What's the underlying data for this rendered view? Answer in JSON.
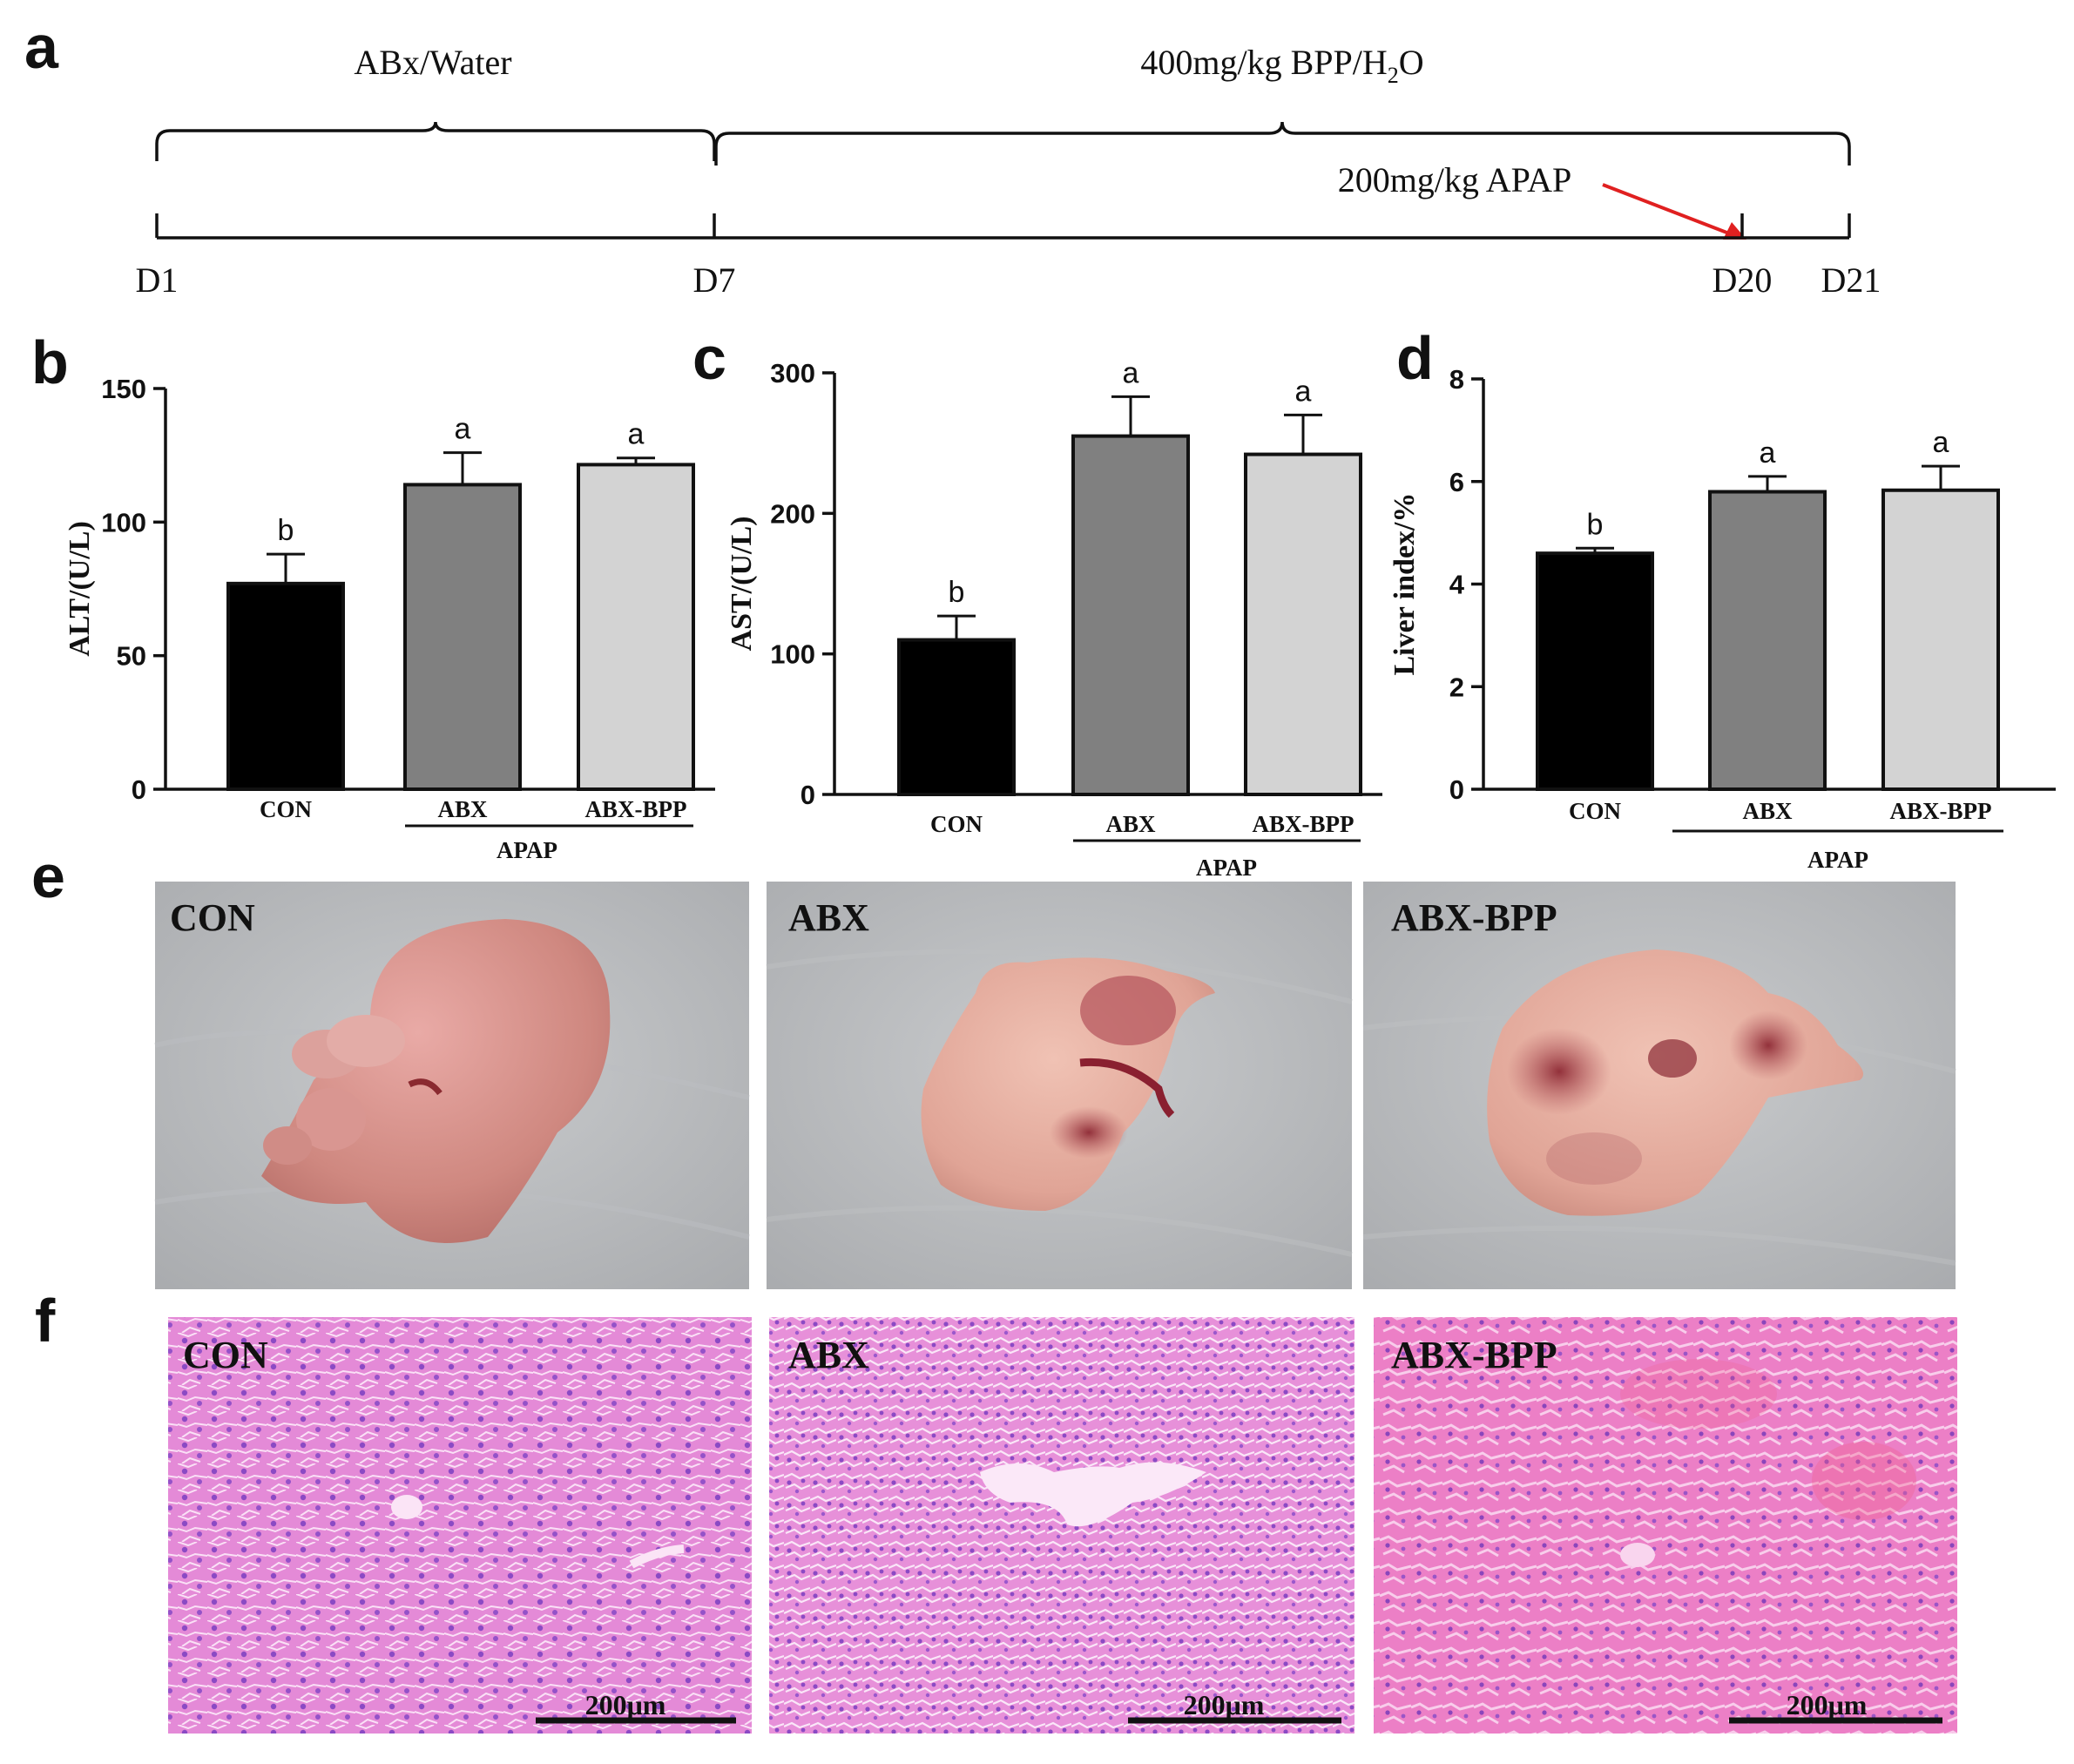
{
  "panel_letters": {
    "a": "a",
    "b": "b",
    "c": "c",
    "d": "d",
    "e": "e",
    "f": "f"
  },
  "timeline": {
    "brace1_label": "ABx/Water",
    "brace2_label_pre": "400mg/kg BPP/H",
    "brace2_label_sub": "2",
    "brace2_label_post": "O",
    "arrow_label": "200mg/kg APAP",
    "arrow_color": "#e02020",
    "days": [
      {
        "label": "D1",
        "day": 1
      },
      {
        "label": "D7",
        "day": 7
      },
      {
        "label": "D20",
        "day": 20
      },
      {
        "label": "D21",
        "day": 21
      }
    ]
  },
  "chart_data": [
    {
      "type": "bar",
      "panel": "b",
      "ylabel": "ALT/(U/L)",
      "ylim": [
        0,
        150
      ],
      "yticks": [
        "0",
        "50",
        "100",
        "150"
      ],
      "yticks_values": [
        0,
        50,
        100,
        150
      ],
      "categories": [
        "CON",
        "ABX",
        "ABX-BPP"
      ],
      "values": [
        77,
        114,
        121.5
      ],
      "errors": [
        11,
        12,
        2.5
      ],
      "significance": [
        "b",
        "a",
        "a"
      ],
      "colors": [
        "#000000",
        "#808080",
        "#d3d3d3"
      ],
      "group_label": "APAP"
    },
    {
      "type": "bar",
      "panel": "c",
      "ylabel": "AST/(U/L)",
      "ylim": [
        0,
        300
      ],
      "yticks": [
        "0",
        "100",
        "200",
        "300"
      ],
      "yticks_values": [
        0,
        100,
        200,
        300
      ],
      "categories": [
        "CON",
        "ABX",
        "ABX-BPP"
      ],
      "values": [
        110,
        255,
        242
      ],
      "errors": [
        17,
        28,
        28
      ],
      "significance": [
        "b",
        "a",
        "a"
      ],
      "colors": [
        "#000000",
        "#808080",
        "#d3d3d3"
      ],
      "group_label": "APAP"
    },
    {
      "type": "bar",
      "panel": "d",
      "ylabel": "Liver index/%",
      "ylim": [
        0,
        8
      ],
      "yticks": [
        "0",
        "2",
        "4",
        "6",
        "8"
      ],
      "yticks_values": [
        0,
        2,
        4,
        6,
        8
      ],
      "categories": [
        "CON",
        "ABX",
        "ABX-BPP"
      ],
      "values": [
        4.6,
        5.8,
        5.83
      ],
      "errors": [
        0.1,
        0.3,
        0.47
      ],
      "significance": [
        "b",
        "a",
        "a"
      ],
      "colors": [
        "#000000",
        "#808080",
        "#d3d3d3"
      ],
      "group_label": "APAP"
    }
  ],
  "photos": {
    "labels": [
      "CON",
      "ABX",
      "ABX-BPP"
    ]
  },
  "histology": {
    "labels": [
      "CON",
      "ABX",
      "ABX-BPP"
    ],
    "scale_label": "200μm"
  }
}
